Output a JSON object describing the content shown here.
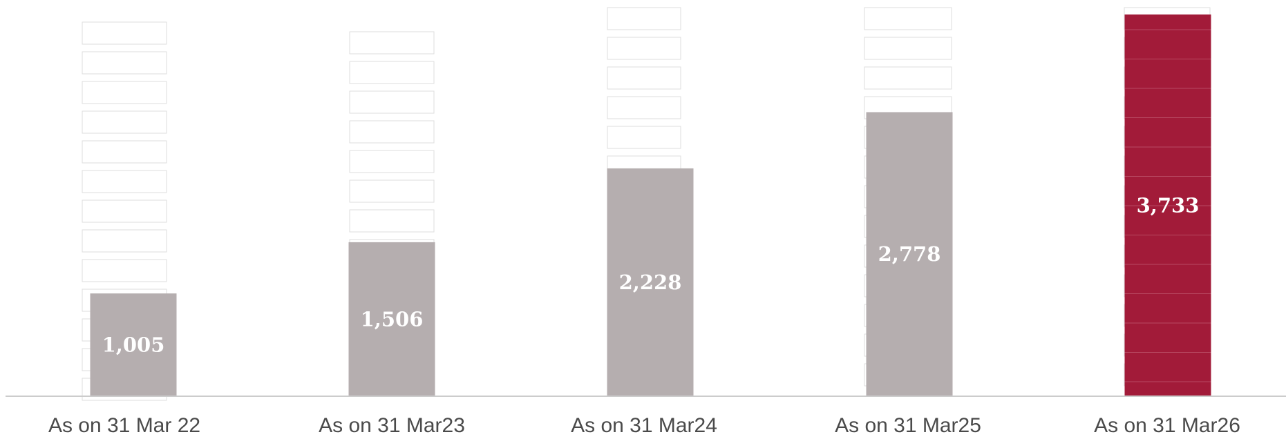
{
  "chart_data": {
    "type": "bar",
    "title": "",
    "xlabel": "",
    "ylabel": "",
    "categories": [
      "As on 31 Mar 22",
      "As on 31 Mar23",
      "As on 31 Mar24",
      "As on 31 Mar25",
      "As on 31 Mar26"
    ],
    "values": [
      1005,
      1506,
      2228,
      2778,
      3733
    ],
    "value_labels": [
      "1,005",
      "1,506",
      "2,228",
      "2,778",
      "3,733"
    ],
    "ylim": [
      0,
      3733
    ],
    "grid": false,
    "legend": "none",
    "highlight_index": 4
  },
  "colors": {
    "bar_default": "#b5aeaf",
    "bar_highlight": "#a21b39",
    "baseline": "#cccccc",
    "label_text": "#4a4a4a",
    "value_text": "#ffffff"
  }
}
